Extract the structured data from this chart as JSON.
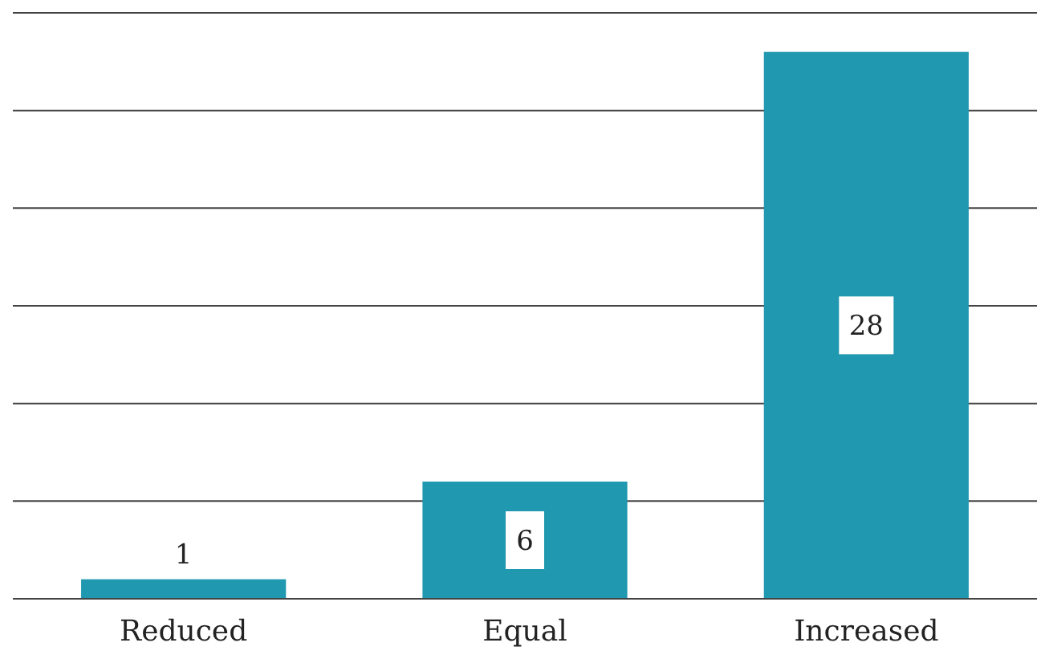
{
  "chart_data": {
    "type": "bar",
    "categories": [
      "Reduced",
      "Equal",
      "Increased"
    ],
    "values": [
      1,
      6,
      28
    ],
    "color": "#2098b0",
    "ylim": [
      0,
      30
    ],
    "yticks": [
      {
        "value": 0,
        "label": null
      },
      {
        "value": 5,
        "label": null
      },
      {
        "value": 10,
        "label": null
      },
      {
        "value": 15,
        "label": null
      },
      {
        "value": 20,
        "label": null
      },
      {
        "value": 25,
        "label": null
      },
      {
        "value": 30,
        "label": null
      }
    ],
    "grid": "y",
    "tick_labels": "x",
    "data_labels": true
  }
}
